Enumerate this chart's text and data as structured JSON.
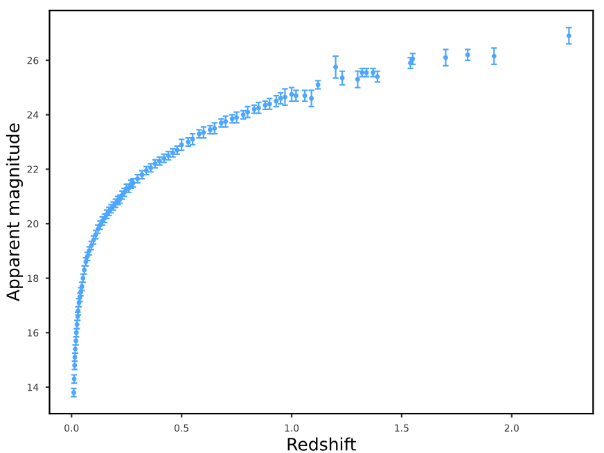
{
  "chart_data": {
    "type": "scatter",
    "xlabel": "Redshift",
    "ylabel": "Apparent magnitude",
    "x": [
      0.01,
      0.012,
      0.014,
      0.015,
      0.017,
      0.02,
      0.022,
      0.025,
      0.028,
      0.03,
      0.034,
      0.038,
      0.042,
      0.047,
      0.052,
      0.058,
      0.065,
      0.072,
      0.08,
      0.09,
      0.1,
      0.11,
      0.12,
      0.13,
      0.14,
      0.15,
      0.16,
      0.17,
      0.18,
      0.19,
      0.2,
      0.21,
      0.22,
      0.23,
      0.24,
      0.25,
      0.26,
      0.27,
      0.28,
      0.3,
      0.32,
      0.34,
      0.36,
      0.38,
      0.4,
      0.42,
      0.44,
      0.46,
      0.48,
      0.5,
      0.53,
      0.55,
      0.58,
      0.6,
      0.63,
      0.65,
      0.68,
      0.7,
      0.73,
      0.75,
      0.78,
      0.8,
      0.83,
      0.85,
      0.88,
      0.9,
      0.93,
      0.95,
      0.97,
      1.0,
      1.02,
      1.06,
      1.09,
      1.12,
      1.2,
      1.23,
      1.3,
      1.32,
      1.34,
      1.37,
      1.39,
      1.54,
      1.55,
      1.7,
      1.8,
      1.92,
      2.26
    ],
    "values": [
      13.8,
      14.3,
      14.8,
      15.1,
      15.4,
      15.7,
      16.0,
      16.3,
      16.6,
      16.8,
      17.1,
      17.3,
      17.5,
      17.7,
      18.0,
      18.3,
      18.6,
      18.8,
      19.0,
      19.2,
      19.4,
      19.6,
      19.8,
      19.95,
      20.1,
      20.2,
      20.35,
      20.45,
      20.55,
      20.65,
      20.75,
      20.85,
      20.9,
      21.05,
      21.15,
      21.3,
      21.3,
      21.45,
      21.5,
      21.65,
      21.8,
      21.95,
      22.05,
      22.2,
      22.3,
      22.4,
      22.5,
      22.6,
      22.7,
      22.9,
      23.0,
      23.1,
      23.3,
      23.35,
      23.45,
      23.5,
      23.7,
      23.75,
      23.85,
      23.9,
      24.0,
      24.1,
      24.2,
      24.25,
      24.35,
      24.4,
      24.5,
      24.6,
      24.65,
      24.75,
      24.7,
      24.7,
      24.6,
      25.1,
      25.75,
      25.35,
      25.3,
      25.55,
      25.55,
      25.55,
      25.4,
      25.9,
      26.05,
      26.1,
      26.2,
      26.15,
      26.9
    ],
    "errors": [
      0.15,
      0.15,
      0.15,
      0.15,
      0.15,
      0.15,
      0.15,
      0.15,
      0.15,
      0.15,
      0.15,
      0.15,
      0.15,
      0.15,
      0.15,
      0.15,
      0.15,
      0.15,
      0.15,
      0.15,
      0.15,
      0.15,
      0.15,
      0.15,
      0.15,
      0.15,
      0.15,
      0.15,
      0.15,
      0.15,
      0.15,
      0.15,
      0.15,
      0.15,
      0.15,
      0.15,
      0.15,
      0.15,
      0.15,
      0.15,
      0.15,
      0.15,
      0.15,
      0.15,
      0.15,
      0.15,
      0.15,
      0.15,
      0.15,
      0.2,
      0.15,
      0.2,
      0.15,
      0.2,
      0.15,
      0.2,
      0.15,
      0.2,
      0.15,
      0.2,
      0.15,
      0.2,
      0.15,
      0.2,
      0.15,
      0.2,
      0.2,
      0.2,
      0.3,
      0.25,
      0.2,
      0.2,
      0.3,
      0.15,
      0.4,
      0.25,
      0.3,
      0.15,
      0.15,
      0.15,
      0.2,
      0.2,
      0.2,
      0.3,
      0.2,
      0.3,
      0.3
    ],
    "color": "#4da6ff",
    "marker": "circle",
    "xlim": [
      -0.1,
      2.37
    ],
    "ylim": [
      13.03,
      27.83
    ],
    "xticks": [
      {
        "value": 0,
        "label": "0.0"
      },
      0.5,
      {
        "value": 1,
        "label": "1.0"
      },
      1.5,
      {
        "value": 2,
        "label": "2.0"
      }
    ],
    "yticks": [
      14,
      16,
      18,
      20,
      22,
      24,
      26
    ],
    "grid": false
  }
}
